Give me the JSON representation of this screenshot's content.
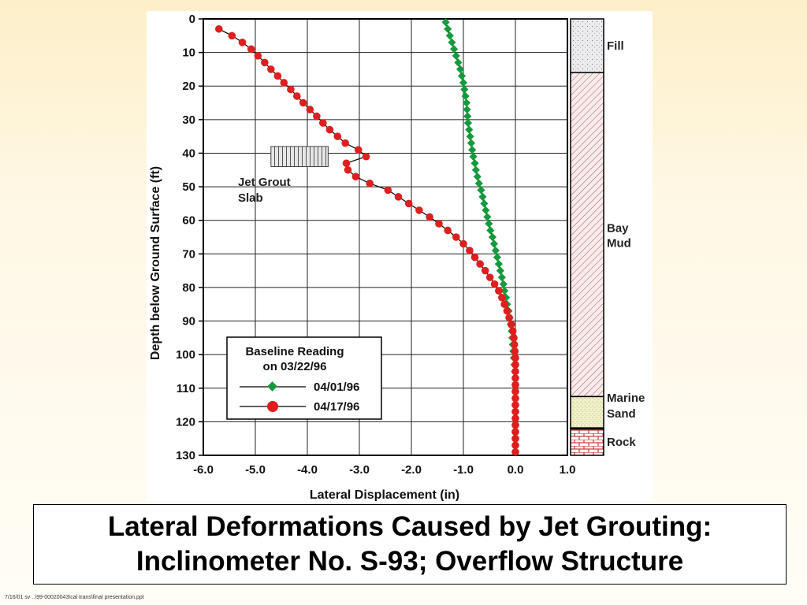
{
  "slide": {
    "title_line1": "Lateral Deformations Caused by Jet Grouting:",
    "title_line2": "Inclinometer No. S-93; Overflow Structure",
    "footer": "7/16/01 sv ..\\99-00020043\\cal trans\\final presentation.ppt"
  },
  "colors": {
    "green_series": "#149a3c",
    "red_series": "#dd1f1f",
    "fill_layer": "#e9e9ec",
    "bay_mud_hatch": "#c04040",
    "marine_sand": "#f1f1c2",
    "rock": "#c23a3a"
  },
  "chart_data": {
    "type": "line",
    "xlabel": "Lateral Displacement (in)",
    "ylabel": "Depth below Ground Surface (ft)",
    "xlim": [
      -6.0,
      1.0
    ],
    "ylim": [
      0,
      130
    ],
    "y_inverted": true,
    "grid": true,
    "x_ticks": [
      "-6.0",
      "-5.0",
      "-4.0",
      "-3.0",
      "-2.0",
      "-1.0",
      "0.0",
      "1.0"
    ],
    "y_ticks": [
      "0",
      "10",
      "20",
      "30",
      "40",
      "50",
      "60",
      "70",
      "80",
      "90",
      "100",
      "110",
      "120",
      "130"
    ],
    "legend": {
      "title_line1": "Baseline Reading",
      "title_line2": "on 03/22/96",
      "placement": "lower-left"
    },
    "annotation": {
      "line1": "Jet Grout",
      "line2": "Slab",
      "depth_range": [
        38,
        44
      ],
      "x_range": [
        -4.7,
        -3.6
      ]
    },
    "series": [
      {
        "name": "04/01/96",
        "marker": "diamond",
        "color": "#149a3c",
        "points": [
          [
            -1.34,
            1
          ],
          [
            -1.3,
            3
          ],
          [
            -1.26,
            5
          ],
          [
            -1.22,
            7
          ],
          [
            -1.18,
            9
          ],
          [
            -1.14,
            11
          ],
          [
            -1.1,
            13
          ],
          [
            -1.06,
            15
          ],
          [
            -1.03,
            17
          ],
          [
            -1.0,
            19
          ],
          [
            -0.98,
            21
          ],
          [
            -0.96,
            23
          ],
          [
            -0.94,
            25
          ],
          [
            -0.93,
            27
          ],
          [
            -0.92,
            29
          ],
          [
            -0.91,
            31
          ],
          [
            -0.89,
            33
          ],
          [
            -0.87,
            35
          ],
          [
            -0.85,
            37
          ],
          [
            -0.83,
            39
          ],
          [
            -0.81,
            41
          ],
          [
            -0.78,
            43
          ],
          [
            -0.76,
            45
          ],
          [
            -0.73,
            47
          ],
          [
            -0.7,
            49
          ],
          [
            -0.66,
            51
          ],
          [
            -0.63,
            53
          ],
          [
            -0.6,
            55
          ],
          [
            -0.57,
            57
          ],
          [
            -0.54,
            59
          ],
          [
            -0.51,
            61
          ],
          [
            -0.48,
            63
          ],
          [
            -0.44,
            65
          ],
          [
            -0.41,
            67
          ],
          [
            -0.38,
            69
          ],
          [
            -0.35,
            71
          ],
          [
            -0.32,
            73
          ],
          [
            -0.29,
            75
          ],
          [
            -0.26,
            77
          ],
          [
            -0.23,
            79
          ],
          [
            -0.21,
            81
          ],
          [
            -0.18,
            83
          ],
          [
            -0.16,
            85
          ],
          [
            -0.13,
            87
          ],
          [
            -0.11,
            89
          ],
          [
            -0.09,
            91
          ],
          [
            -0.07,
            93
          ],
          [
            -0.06,
            95
          ],
          [
            -0.05,
            97
          ],
          [
            -0.04,
            99
          ],
          [
            -0.03,
            101
          ],
          [
            -0.02,
            103
          ],
          [
            -0.01,
            105
          ],
          [
            0.0,
            107
          ],
          [
            0.0,
            109
          ],
          [
            0.0,
            111
          ],
          [
            0.0,
            113
          ],
          [
            0.0,
            115
          ],
          [
            0.0,
            117
          ],
          [
            0.0,
            119
          ],
          [
            0.0,
            121
          ],
          [
            0.0,
            123
          ],
          [
            0.0,
            125
          ],
          [
            0.0,
            127
          ],
          [
            0.0,
            129
          ]
        ]
      },
      {
        "name": "04/17/96",
        "marker": "circle",
        "color": "#dd1f1f",
        "points": [
          [
            -5.7,
            3
          ],
          [
            -5.45,
            5
          ],
          [
            -5.25,
            7
          ],
          [
            -5.08,
            9
          ],
          [
            -4.95,
            11
          ],
          [
            -4.82,
            13
          ],
          [
            -4.7,
            15
          ],
          [
            -4.57,
            17
          ],
          [
            -4.45,
            19
          ],
          [
            -4.32,
            21
          ],
          [
            -4.2,
            23
          ],
          [
            -4.08,
            25
          ],
          [
            -3.95,
            27
          ],
          [
            -3.82,
            29
          ],
          [
            -3.7,
            31
          ],
          [
            -3.57,
            33
          ],
          [
            -3.42,
            35
          ],
          [
            -3.27,
            37
          ],
          [
            -3.02,
            39
          ],
          [
            -2.87,
            41
          ],
          [
            -3.25,
            43
          ],
          [
            -3.22,
            45
          ],
          [
            -3.07,
            47
          ],
          [
            -2.8,
            49
          ],
          [
            -2.45,
            51
          ],
          [
            -2.25,
            53
          ],
          [
            -2.05,
            55
          ],
          [
            -1.85,
            57
          ],
          [
            -1.65,
            59
          ],
          [
            -1.47,
            61
          ],
          [
            -1.3,
            63
          ],
          [
            -1.14,
            65
          ],
          [
            -1.0,
            67
          ],
          [
            -0.88,
            69
          ],
          [
            -0.78,
            71
          ],
          [
            -0.68,
            73
          ],
          [
            -0.58,
            75
          ],
          [
            -0.49,
            77
          ],
          [
            -0.4,
            79
          ],
          [
            -0.32,
            81
          ],
          [
            -0.26,
            83
          ],
          [
            -0.21,
            85
          ],
          [
            -0.16,
            87
          ],
          [
            -0.12,
            89
          ],
          [
            -0.08,
            91
          ],
          [
            -0.05,
            93
          ],
          [
            -0.03,
            95
          ],
          [
            -0.02,
            97
          ],
          [
            -0.01,
            99
          ],
          [
            0.0,
            101
          ],
          [
            0.0,
            103
          ],
          [
            0.0,
            105
          ],
          [
            0.0,
            107
          ],
          [
            0.0,
            109
          ],
          [
            0.0,
            111
          ],
          [
            0.0,
            113
          ],
          [
            0.0,
            115
          ],
          [
            0.0,
            117
          ],
          [
            0.0,
            119
          ],
          [
            0.0,
            121
          ],
          [
            0.0,
            123
          ],
          [
            0.0,
            125
          ],
          [
            0.0,
            127
          ],
          [
            0.0,
            129
          ]
        ]
      }
    ],
    "soil_column": [
      {
        "name": "Fill",
        "top": 0,
        "bottom": 16,
        "pattern": "dots"
      },
      {
        "name": "Bay Mud",
        "name_line1": "Bay",
        "name_line2": "Mud",
        "top": 16,
        "bottom": 112.5,
        "pattern": "hatch"
      },
      {
        "name": "Marine Sand",
        "name_line1": "Marine",
        "name_line2": "Sand",
        "top": 112.5,
        "bottom": 122,
        "pattern": "sand"
      },
      {
        "name": "Rock",
        "top": 122,
        "bottom": 130,
        "pattern": "brick"
      }
    ]
  }
}
